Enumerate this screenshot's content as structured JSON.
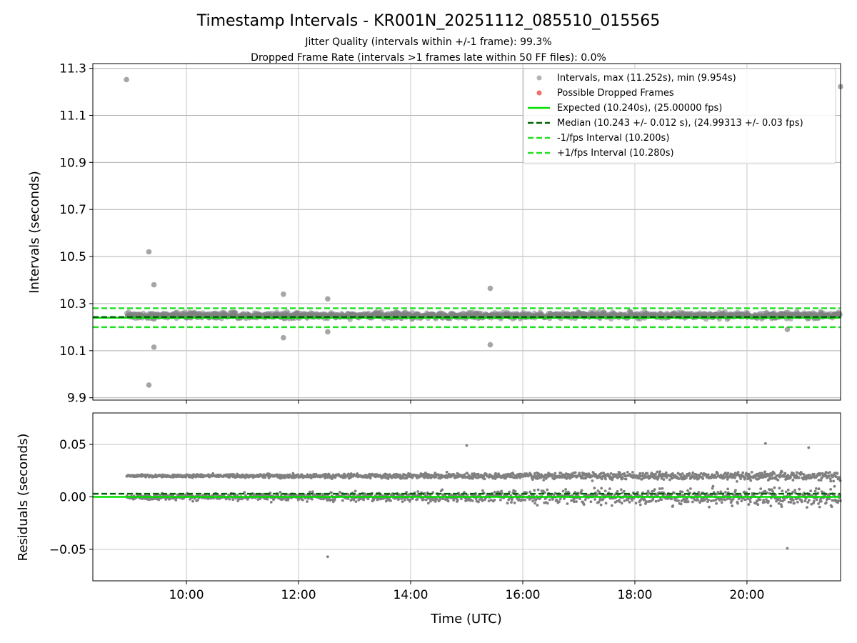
{
  "chart_data": [
    {
      "type": "scatter",
      "title": "Timestamp Intervals - KR001N_20251112_085510_015565",
      "subtitle_1": "Jitter Quality (intervals within +/-1 frame): 99.3%",
      "subtitle_2": "Dropped Frame Rate (intervals >1 frames late within 50 FF files): 0.0%",
      "xlabel": "",
      "ylabel": "Intervals (seconds)",
      "xlim_hours": [
        8.33,
        21.67
      ],
      "ylim": [
        9.89,
        11.32
      ],
      "yticks": [
        9.9,
        10.1,
        10.3,
        10.5,
        10.7,
        10.9,
        11.1,
        11.3
      ],
      "ytick_labels": [
        "9.9",
        "10.1",
        "10.3",
        "10.5",
        "10.7",
        "10.9",
        "11.1",
        "11.3"
      ],
      "grid": true,
      "legend_position": "top-right",
      "legend": [
        "Intervals, max (11.252s), min (9.954s)",
        "Possible Dropped Frames",
        "Expected (10.240s), (25.00000 fps)",
        "Median (10.243 +/- 0.012 s), (24.99313 +/- 0.03 fps)",
        "-1/fps Interval (10.200s)",
        "+1/fps Interval (10.280s)"
      ],
      "series": [
        {
          "name": "Intervals",
          "color": "#808080",
          "band_center": 10.25,
          "band_halfwidth": 0.02,
          "range_hours": [
            8.93,
            21.67
          ]
        },
        {
          "name": "Expected",
          "y": 10.24,
          "color": "#00e000",
          "style": "solid"
        },
        {
          "name": "Median",
          "y": 10.243,
          "color": "#006400",
          "style": "dashed"
        },
        {
          "name": "-1/fps Interval",
          "y": 10.2,
          "color": "#22e022",
          "style": "dashed"
        },
        {
          "name": "+1/fps Interval",
          "y": 10.28,
          "color": "#22e022",
          "style": "dashed"
        }
      ],
      "outliers": [
        {
          "x": 8.93,
          "y": 11.252
        },
        {
          "x": 9.33,
          "y": 10.52
        },
        {
          "x": 9.42,
          "y": 10.38
        },
        {
          "x": 9.42,
          "y": 10.115
        },
        {
          "x": 9.33,
          "y": 9.954
        },
        {
          "x": 11.73,
          "y": 10.34
        },
        {
          "x": 11.73,
          "y": 10.155
        },
        {
          "x": 12.52,
          "y": 10.32
        },
        {
          "x": 12.52,
          "y": 10.18
        },
        {
          "x": 15.42,
          "y": 10.365
        },
        {
          "x": 15.42,
          "y": 10.125
        },
        {
          "x": 20.72,
          "y": 10.19
        },
        {
          "x": 21.67,
          "y": 11.222
        }
      ]
    },
    {
      "type": "scatter",
      "title": "",
      "xlabel": "Time (UTC)",
      "ylabel": "Residuals (seconds)",
      "xlim_hours": [
        8.33,
        21.67
      ],
      "ylim": [
        -0.08,
        0.08
      ],
      "yticks": [
        -0.05,
        0.0,
        0.05
      ],
      "ytick_labels": [
        "−0.05",
        "0.00",
        "0.05"
      ],
      "xticks_hours": [
        10,
        12,
        14,
        16,
        18,
        20
      ],
      "xtick_labels": [
        "10:00",
        "12:00",
        "14:00",
        "16:00",
        "18:00",
        "20:00"
      ],
      "grid": true,
      "series": [
        {
          "name": "Residuals",
          "color": "#808080",
          "bands": [
            0.02,
            0.0
          ],
          "spread": 0.015,
          "range_hours": [
            8.93,
            21.67
          ]
        },
        {
          "name": "Expected",
          "y": 0.0,
          "color": "#00e000",
          "style": "solid"
        },
        {
          "name": "Median",
          "y": 0.003,
          "color": "#006400",
          "style": "dashed"
        }
      ],
      "outliers": [
        {
          "x": 12.52,
          "y": -0.057
        },
        {
          "x": 20.72,
          "y": -0.049
        },
        {
          "x": 20.33,
          "y": 0.051
        },
        {
          "x": 15.0,
          "y": 0.049
        },
        {
          "x": 21.1,
          "y": 0.047
        }
      ]
    }
  ]
}
